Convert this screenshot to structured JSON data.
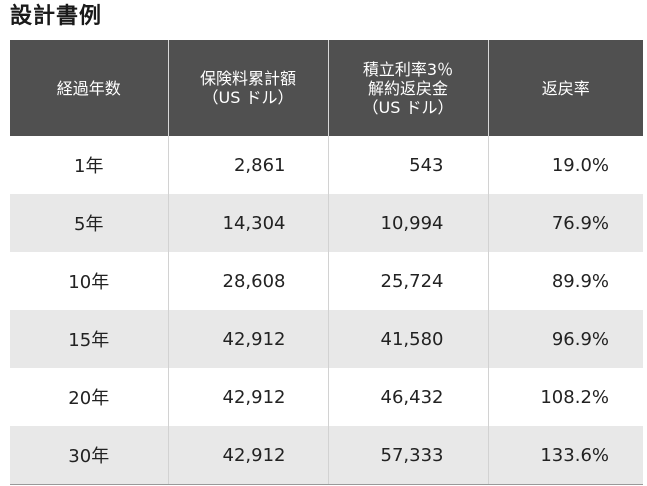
{
  "title": "設計書例",
  "table": {
    "headers": [
      {
        "lines": [
          "経過年数"
        ]
      },
      {
        "lines": [
          "保険料累計額",
          "（US ドル）"
        ]
      },
      {
        "lines": [
          "積立利率3％",
          "解約返戻金",
          "（US ドル）"
        ]
      },
      {
        "lines": [
          "返戻率"
        ]
      }
    ],
    "rows": [
      {
        "year": "1年",
        "premium": "2,861",
        "refund": "543",
        "rate": "19.0%"
      },
      {
        "year": "5年",
        "premium": "14,304",
        "refund": "10,994",
        "rate": "76.9%"
      },
      {
        "year": "10年",
        "premium": "28,608",
        "refund": "25,724",
        "rate": "89.9%"
      },
      {
        "year": "15年",
        "premium": "42,912",
        "refund": "41,580",
        "rate": "96.9%"
      },
      {
        "year": "20年",
        "premium": "42,912",
        "refund": "46,432",
        "rate": "108.2%"
      },
      {
        "year": "30年",
        "premium": "42,912",
        "refund": "57,333",
        "rate": "133.6%"
      }
    ]
  },
  "colors": {
    "header_bg": "#505050",
    "header_text": "#ffffff",
    "alt_row_bg": "#e8e8e8"
  }
}
